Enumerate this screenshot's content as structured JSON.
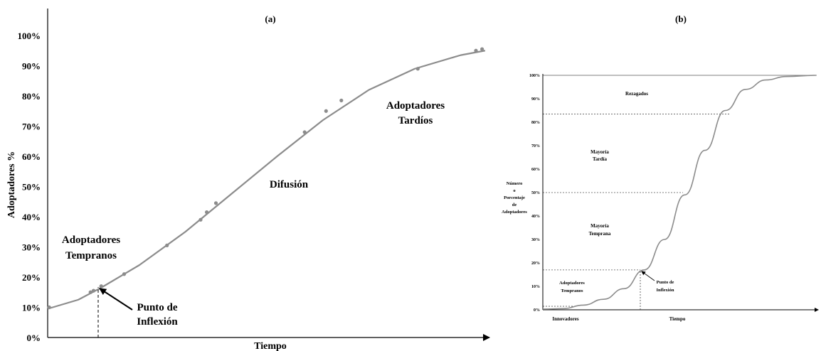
{
  "chart_data": [
    {
      "panel_label": "(a)",
      "type": "scatter",
      "xlabel": "Tiempo",
      "ylabel": "Adoptadores %",
      "ylim": [
        0,
        100
      ],
      "yticks": [
        "0%",
        "10%",
        "20%",
        "30%",
        "40%",
        "50%",
        "60%",
        "70%",
        "80%",
        "90%",
        "100%"
      ],
      "series": [
        {
          "type": "scatter",
          "points": [
            {
              "x": 0.5,
              "y": 10
            },
            {
              "x": 14,
              "y": 15
            },
            {
              "x": 15,
              "y": 15.5
            },
            {
              "x": 17.5,
              "y": 17
            },
            {
              "x": 25,
              "y": 21
            },
            {
              "x": 39,
              "y": 30.5
            },
            {
              "x": 50,
              "y": 39
            },
            {
              "x": 52,
              "y": 41.5
            },
            {
              "x": 55,
              "y": 44.5
            },
            {
              "x": 84,
              "y": 68
            },
            {
              "x": 91,
              "y": 75
            },
            {
              "x": 96,
              "y": 78.5
            },
            {
              "x": 121,
              "y": 89
            },
            {
              "x": 140,
              "y": 95
            },
            {
              "x": 142,
              "y": 95.5
            }
          ]
        },
        {
          "type": "line",
          "points": [
            {
              "x": 0,
              "y": 9.5
            },
            {
              "x": 10,
              "y": 12.5
            },
            {
              "x": 17.5,
              "y": 16.5
            },
            {
              "x": 30,
              "y": 24
            },
            {
              "x": 45,
              "y": 35
            },
            {
              "x": 60,
              "y": 47.5
            },
            {
              "x": 75,
              "y": 60
            },
            {
              "x": 90,
              "y": 72
            },
            {
              "x": 105,
              "y": 82
            },
            {
              "x": 120,
              "y": 89
            },
            {
              "x": 135,
              "y": 93.5
            },
            {
              "x": 143,
              "y": 95
            }
          ]
        }
      ],
      "annotations": [
        "Adoptadores Tempranos",
        "Punto de Inflexión",
        "Difusión",
        "Adoptadores Tardíos"
      ]
    },
    {
      "panel_label": "(b)",
      "type": "line",
      "xlabel": "Tiempo",
      "ylabel": "Número o Porcentaje de Adoptadores",
      "ylim": [
        0,
        100
      ],
      "yticks": [
        "0%",
        "10%",
        "20%",
        "30%",
        "40%",
        "50%",
        "60%",
        "70%",
        "80%",
        "90%",
        "100%"
      ],
      "series": [
        {
          "points": [
            {
              "x": 0,
              "y": 0.3
            },
            {
              "x": 10,
              "y": 0.5
            },
            {
              "x": 20,
              "y": 2
            },
            {
              "x": 30,
              "y": 4.5
            },
            {
              "x": 40,
              "y": 9
            },
            {
              "x": 50,
              "y": 17
            },
            {
              "x": 60,
              "y": 30
            },
            {
              "x": 70,
              "y": 49
            },
            {
              "x": 80,
              "y": 68
            },
            {
              "x": 90,
              "y": 85
            },
            {
              "x": 100,
              "y": 94
            },
            {
              "x": 110,
              "y": 98
            },
            {
              "x": 120,
              "y": 99.5
            },
            {
              "x": 135,
              "y": 100
            }
          ]
        }
      ],
      "thresholds": [
        1.5,
        17,
        50,
        83.5,
        100
      ],
      "regions": [
        "Rezagados",
        "Mayoría Tardía",
        "Mayoría Temprana",
        "Adoptadores Tempranos"
      ],
      "annotations": [
        "Punto de Inflexión"
      ],
      "x_labels": [
        "Innovadores",
        "Tiempo"
      ]
    }
  ]
}
